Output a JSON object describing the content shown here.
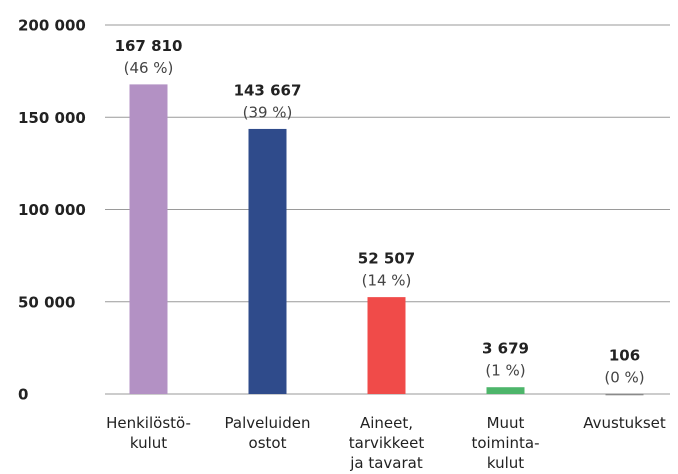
{
  "chart_data": {
    "type": "bar",
    "categories": [
      "Henkilöstö-\nkulut",
      "Palveluiden\nostot",
      "Aineet,\ntarvikkeet\nja tavarat",
      "Muut\ntoiminta-\nkulut",
      "Avustukset"
    ],
    "values": [
      167810,
      143667,
      52507,
      3679,
      106
    ],
    "value_labels": [
      "167 810",
      "143 667",
      "52 507",
      "3 679",
      "106"
    ],
    "shares": [
      46,
      39,
      14,
      1,
      0
    ],
    "share_labels": [
      "(46 %)",
      "(39 %)",
      "(14 %)",
      "(1 %)",
      "(0 %)"
    ],
    "colors": [
      "#b391c4",
      "#2f4b8b",
      "#f04b49",
      "#4db56a",
      "#8a8a8a"
    ],
    "ylim": [
      0,
      200000
    ],
    "yticks": [
      0,
      {
        "value": 50000,
        "label": "50 000"
      },
      {
        "value": 100000,
        "label": "100 000"
      },
      {
        "value": 150000,
        "label": "150 000"
      },
      {
        "value": 200000,
        "label": "200 000"
      }
    ],
    "grid": true
  }
}
